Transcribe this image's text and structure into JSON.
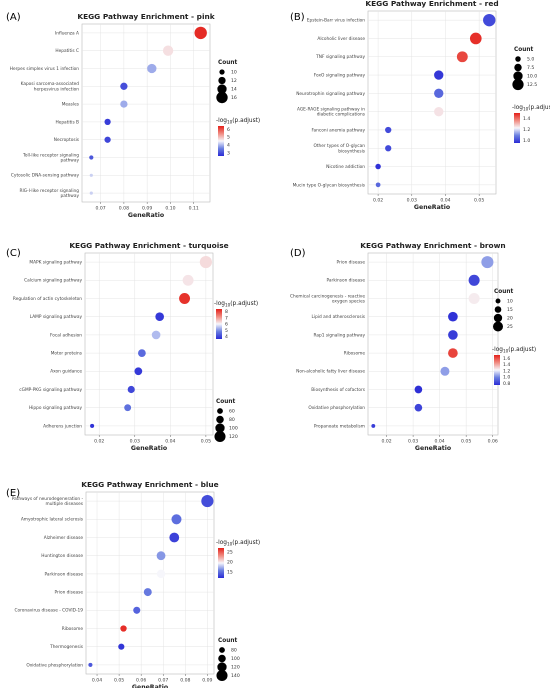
{
  "chart_data": [
    {
      "id": "A",
      "type": "scatter",
      "panel_label": "(A)",
      "title": "KEGG Pathway Enrichment - pink",
      "xlabel": "GeneRatio",
      "xlim": [
        0.062,
        0.117
      ],
      "xticks": [
        0.07,
        0.08,
        0.09,
        0.1,
        0.11
      ],
      "xtick_labels": [
        "0.07",
        "0.08",
        "0.09",
        "0.10",
        "0.11"
      ],
      "count_title": "Count",
      "count_legend": [
        10,
        12,
        14,
        16
      ],
      "count_range": [
        8,
        17
      ],
      "color_title": "-log10(p.adjust)",
      "color_ticks": [
        3,
        4,
        5,
        6
      ],
      "color_range": [
        2.6,
        6.4
      ],
      "points": [
        {
          "label": "Influenza A",
          "x": 0.113,
          "count": 17,
          "color": 6.3
        },
        {
          "label": "Hepatitis C",
          "x": 0.099,
          "count": 15,
          "color": 4.7
        },
        {
          "label": "Herpes simplex virus 1 infection",
          "x": 0.092,
          "count": 14,
          "color": 3.9
        },
        {
          "label": "Kaposi sarcoma-associated herpesvirus infection",
          "x": 0.08,
          "count": 12,
          "color": 3.0
        },
        {
          "label": "Measles",
          "x": 0.08,
          "count": 12,
          "color": 3.9
        },
        {
          "label": "Hepatitis B",
          "x": 0.073,
          "count": 11,
          "color": 2.8
        },
        {
          "label": "Necroptosis",
          "x": 0.073,
          "count": 11,
          "color": 2.9
        },
        {
          "label": "Toll-like receptor signaling pathway",
          "x": 0.066,
          "count": 9,
          "color": 3.1
        },
        {
          "label": "Cytosolic DNA-sensing pathway",
          "x": 0.066,
          "count": 8,
          "color": 4.2
        },
        {
          "label": "RIG-I-like receptor signaling pathway",
          "x": 0.066,
          "count": 8,
          "color": 4.2
        }
      ]
    },
    {
      "id": "B",
      "type": "scatter",
      "panel_label": "(B)",
      "title": "KEGG Pathway Enrichment - red",
      "xlabel": "GeneRatio",
      "xlim": [
        0.017,
        0.055
      ],
      "xticks": [
        0.02,
        0.03,
        0.04,
        0.05
      ],
      "xtick_labels": [
        "0.02",
        "0.03",
        "0.04",
        "0.05"
      ],
      "count_title": "Count",
      "count_legend": [
        5.0,
        7.5,
        10.0,
        12.5
      ],
      "count_legend_labels": [
        "5.0",
        "7.5",
        "10.0",
        "12.5"
      ],
      "count_range": [
        2,
        14
      ],
      "color_title": "-log10(p.adjust)",
      "color_ticks": [
        1.0,
        1.2,
        1.4
      ],
      "color_tick_labels": [
        "1.0",
        "1.2",
        "1.4"
      ],
      "color_range": [
        0.95,
        1.5
      ],
      "points": [
        {
          "label": "Epstein-Barr virus infection",
          "x": 0.053,
          "count": 14,
          "color": 1.0
        },
        {
          "label": "Alcoholic liver disease",
          "x": 0.049,
          "count": 13,
          "color": 1.48
        },
        {
          "label": "TNF signaling pathway",
          "x": 0.045,
          "count": 12,
          "color": 1.45
        },
        {
          "label": "FoxO signaling pathway",
          "x": 0.038,
          "count": 10,
          "color": 0.97
        },
        {
          "label": "Neurotrophin signaling pathway",
          "x": 0.038,
          "count": 10,
          "color": 1.05
        },
        {
          "label": "AGE-RAGE signaling pathway in diabetic complications",
          "x": 0.038,
          "count": 10,
          "color": 1.25
        },
        {
          "label": "Fanconi anemia pathway",
          "x": 0.023,
          "count": 6,
          "color": 1.0
        },
        {
          "label": "Other types of O-glycan biosynthesis",
          "x": 0.023,
          "count": 6,
          "color": 1.0
        },
        {
          "label": "Nicotine addiction",
          "x": 0.02,
          "count": 5,
          "color": 0.96
        },
        {
          "label": "Mucin type O-glycan biosynthesis",
          "x": 0.02,
          "count": 4,
          "color": 1.05
        }
      ]
    },
    {
      "id": "C",
      "type": "scatter",
      "panel_label": "(C)",
      "title": "KEGG Pathway Enrichment - turquoise",
      "xlabel": "GeneRatio",
      "xlim": [
        0.016,
        0.052
      ],
      "xticks": [
        0.02,
        0.03,
        0.04,
        0.05
      ],
      "xtick_labels": [
        "0.02",
        "0.03",
        "0.04",
        "0.05"
      ],
      "count_title": "Count",
      "count_legend": [
        60,
        80,
        100,
        120
      ],
      "count_range": [
        30,
        135
      ],
      "color_title": "-log10(p.adjust)",
      "color_ticks": [
        4,
        5,
        6,
        7,
        8
      ],
      "color_range": [
        3.6,
        8.4
      ],
      "points": [
        {
          "label": "MAPK signaling pathway",
          "x": 0.05,
          "count": 132,
          "color": 6.3
        },
        {
          "label": "Calcium signaling pathway",
          "x": 0.045,
          "count": 118,
          "color": 6.2
        },
        {
          "label": "Regulation of actin cytoskeleton",
          "x": 0.044,
          "count": 118,
          "color": 8.2
        },
        {
          "label": "LAMP signaling pathway",
          "x": 0.037,
          "count": 92,
          "color": 3.8
        },
        {
          "label": "Focal adhesion",
          "x": 0.036,
          "count": 92,
          "color": 5.4
        },
        {
          "label": "Motor proteins",
          "x": 0.032,
          "count": 82,
          "color": 4.5
        },
        {
          "label": "Axon guidance",
          "x": 0.031,
          "count": 82,
          "color": 3.8
        },
        {
          "label": "cGMP-PKG signaling pathway",
          "x": 0.029,
          "count": 75,
          "color": 4.0
        },
        {
          "label": "Hippo signaling pathway",
          "x": 0.028,
          "count": 72,
          "color": 4.6
        },
        {
          "label": "Adherens junction",
          "x": 0.018,
          "count": 40,
          "color": 3.7
        }
      ]
    },
    {
      "id": "D",
      "type": "scatter",
      "panel_label": "(D)",
      "title": "KEGG Pathway Enrichment - brown",
      "xlabel": "GeneRatio",
      "xlim": [
        0.013,
        0.062
      ],
      "xticks": [
        0.02,
        0.03,
        0.04,
        0.05,
        0.06
      ],
      "xtick_labels": [
        "0.02",
        "0.03",
        "0.04",
        "0.05",
        "0.06"
      ],
      "count_title": "Count",
      "count_legend": [
        10,
        15,
        20,
        25
      ],
      "count_range": [
        5,
        32
      ],
      "color_title": "-log10(p.adjust)",
      "color_ticks": [
        0.8,
        1.0,
        1.2,
        1.4,
        1.6
      ],
      "color_tick_labels": [
        "0.8",
        "1.0",
        "1.2",
        "1.4",
        "1.6"
      ],
      "color_range": [
        0.75,
        1.7
      ],
      "points": [
        {
          "label": "Prion disease",
          "x": 0.058,
          "count": 31,
          "color": 1.05
        },
        {
          "label": "Parkinson disease",
          "x": 0.053,
          "count": 28,
          "color": 0.83
        },
        {
          "label": "Chemical carcinogenesis - reactive oxygen species",
          "x": 0.053,
          "count": 28,
          "color": 1.25
        },
        {
          "label": "Lipid and atherosclerosis",
          "x": 0.045,
          "count": 24,
          "color": 0.77
        },
        {
          "label": "Rap1 signaling pathway",
          "x": 0.045,
          "count": 24,
          "color": 0.8
        },
        {
          "label": "Ribosome",
          "x": 0.045,
          "count": 24,
          "color": 1.62
        },
        {
          "label": "Non-alcoholic fatty liver disease",
          "x": 0.042,
          "count": 22,
          "color": 1.05
        },
        {
          "label": "Biosynthesis of cofactors",
          "x": 0.032,
          "count": 18,
          "color": 0.76
        },
        {
          "label": "Oxidative phosphorylation",
          "x": 0.032,
          "count": 18,
          "color": 0.82
        },
        {
          "label": "Propanoate metabolism",
          "x": 0.015,
          "count": 7,
          "color": 0.8
        }
      ]
    },
    {
      "id": "E",
      "type": "scatter",
      "panel_label": "(E)",
      "title": "KEGG Pathway Enrichment - blue",
      "xlabel": "GeneRatio",
      "xlim": [
        0.035,
        0.093
      ],
      "xticks": [
        0.04,
        0.05,
        0.06,
        0.07,
        0.08,
        0.09
      ],
      "xtick_labels": [
        "0.04",
        "0.05",
        "0.06",
        "0.07",
        "0.08",
        "0.09"
      ],
      "count_title": "Count",
      "count_legend": [
        80,
        100,
        120,
        140
      ],
      "count_range": [
        50,
        155
      ],
      "color_title": "-log10(p.adjust)",
      "color_ticks": [
        15,
        20,
        25
      ],
      "color_range": [
        12,
        27
      ],
      "points": [
        {
          "label": "Pathways of neurodegeneration - multiple diseases",
          "x": 0.09,
          "count": 152,
          "color": 13.5
        },
        {
          "label": "Amyotrophic lateral sclerosis",
          "x": 0.076,
          "count": 128,
          "color": 15.0
        },
        {
          "label": "Alzheimer disease",
          "x": 0.075,
          "count": 125,
          "color": 13.0
        },
        {
          "label": "Huntington disease",
          "x": 0.069,
          "count": 114,
          "color": 16.5
        },
        {
          "label": "Parkinson disease",
          "x": 0.069,
          "count": 110,
          "color": 19.5
        },
        {
          "label": "Prion disease",
          "x": 0.063,
          "count": 104,
          "color": 15.5
        },
        {
          "label": "Coronavirus disease - COVID-19",
          "x": 0.058,
          "count": 94,
          "color": 14.5
        },
        {
          "label": "Ribosome",
          "x": 0.052,
          "count": 86,
          "color": 26.5
        },
        {
          "label": "Thermogenesis",
          "x": 0.051,
          "count": 84,
          "color": 12.5
        },
        {
          "label": "Oxidative phosphorylation",
          "x": 0.037,
          "count": 60,
          "color": 14.0
        }
      ]
    }
  ]
}
